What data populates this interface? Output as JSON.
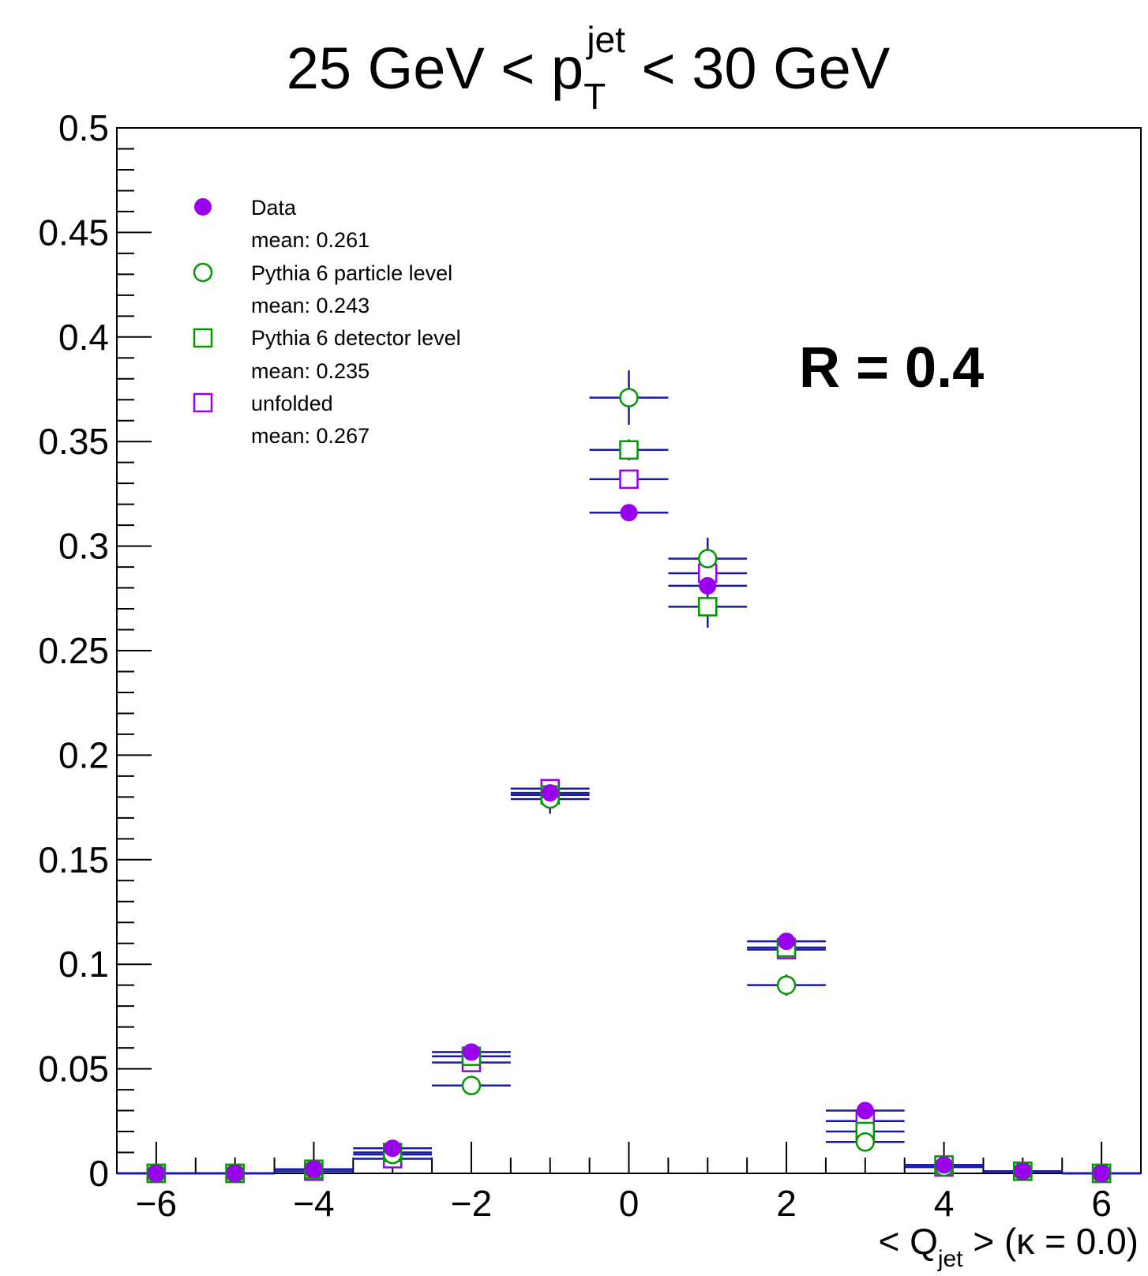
{
  "chart_data": {
    "type": "scatter",
    "title": {
      "prefix": "25 GeV < p",
      "sub": "T",
      "sup": "jet",
      "suffix": " < 30 GeV"
    },
    "xlabel": {
      "prefix": "< Q",
      "sub": "jet",
      "suffix": " >  (κ = 0.0)"
    },
    "ylabel": "",
    "annotation": "R = 0.4",
    "xlim": [
      -6.5,
      6.5
    ],
    "ylim": [
      0,
      0.5
    ],
    "x_ticks": [
      -6,
      -4,
      -2,
      0,
      2,
      4,
      6
    ],
    "x_tick_labels": [
      "−6",
      "−4",
      "−2",
      "0",
      "2",
      "4",
      "6"
    ],
    "y_ticks": [
      0,
      0.05,
      0.1,
      0.15,
      0.2,
      0.25,
      0.3,
      0.35,
      0.4,
      0.45,
      0.5
    ],
    "y_tick_labels": [
      "0",
      "0.05",
      "0.1",
      "0.15",
      "0.2",
      "0.25",
      "0.3",
      "0.35",
      "0.4",
      "0.45",
      "0.5"
    ],
    "grid": false,
    "legend_position": "top-left",
    "x": [
      -6,
      -5,
      -4,
      -3,
      -2,
      -1,
      0,
      1,
      2,
      3,
      4,
      5,
      6
    ],
    "series": [
      {
        "name": "Data",
        "mean_label": "mean: 0.261",
        "marker": "filled-circle",
        "color": "#9900ee",
        "values": [
          0,
          0,
          0.002,
          0.012,
          0.058,
          0.182,
          0.316,
          0.281,
          0.111,
          0.03,
          0.004,
          0.001,
          0
        ],
        "errors": [
          0,
          0,
          0.001,
          0.002,
          0.003,
          0.004,
          0.003,
          0.003,
          0.003,
          0.002,
          0.001,
          0.001,
          0
        ]
      },
      {
        "name": "Pythia 6 particle level",
        "mean_label": "mean: 0.243",
        "marker": "open-circle",
        "color": "#009900",
        "values": [
          0,
          0,
          0.002,
          0.009,
          0.042,
          0.179,
          0.371,
          0.294,
          0.09,
          0.015,
          0.003,
          0.001,
          0
        ],
        "errors": [
          0,
          0,
          0.001,
          0.002,
          0.003,
          0.007,
          0.013,
          0.01,
          0.005,
          0.002,
          0.001,
          0.001,
          0
        ]
      },
      {
        "name": "Pythia 6 detector level",
        "mean_label": "mean: 0.235",
        "marker": "open-square",
        "color": "#009900",
        "values": [
          0,
          0,
          0.002,
          0.01,
          0.056,
          0.181,
          0.346,
          0.271,
          0.108,
          0.02,
          0.004,
          0.001,
          0
        ],
        "errors": [
          0,
          0,
          0.001,
          0.002,
          0.003,
          0.005,
          0.005,
          0.01,
          0.004,
          0.002,
          0.001,
          0.001,
          0
        ]
      },
      {
        "name": "unfolded",
        "mean_label": "mean: 0.267",
        "marker": "open-square",
        "color": "#9900ee",
        "values": [
          0,
          0,
          0.001,
          0.007,
          0.053,
          0.184,
          0.332,
          0.287,
          0.107,
          0.025,
          0.003,
          0.001,
          0
        ],
        "errors": [
          0,
          0,
          0.001,
          0.002,
          0.003,
          0.004,
          0.004,
          0.004,
          0.003,
          0.002,
          0.001,
          0.001,
          0
        ]
      }
    ],
    "error_bar_color": "#1a1aa6"
  }
}
